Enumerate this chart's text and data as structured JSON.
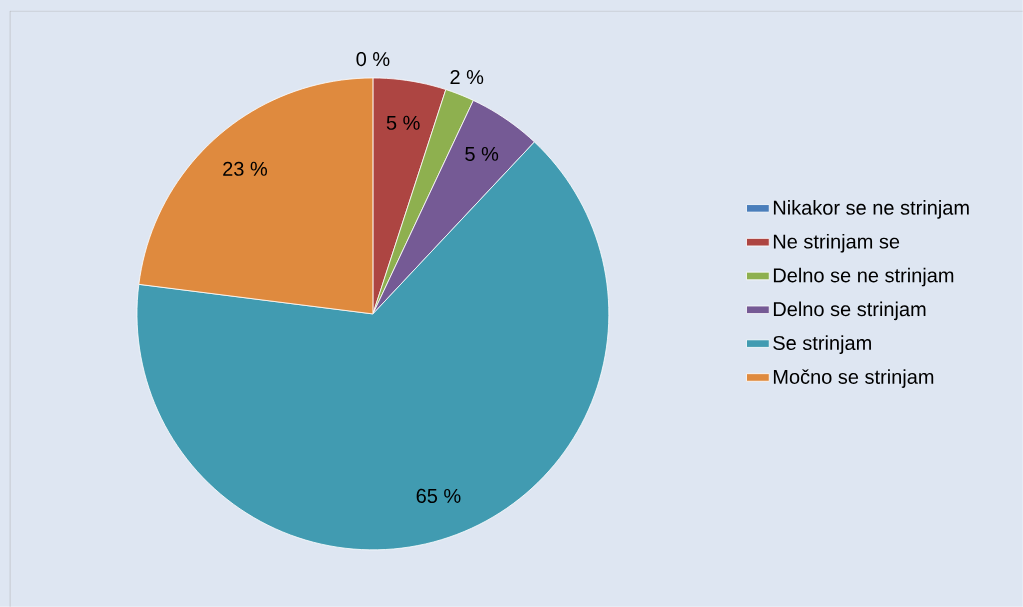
{
  "chart_data": {
    "type": "pie",
    "categories": [
      "Nikakor se ne strinjam",
      "Ne strinjam se",
      "Delno se ne strinjam",
      "Delno se strinjam",
      "Se strinjam",
      "Močno se strinjam"
    ],
    "values": [
      0,
      5,
      2,
      5,
      65,
      23
    ],
    "value_labels": [
      "0 %",
      "5 %",
      "2 %",
      "5 %",
      "65 %",
      "23 %"
    ],
    "colors": [
      "#4a7ebb",
      "#ad4542",
      "#8eb04f",
      "#755a95",
      "#419bb1",
      "#df8a3e"
    ],
    "legend": "right"
  }
}
